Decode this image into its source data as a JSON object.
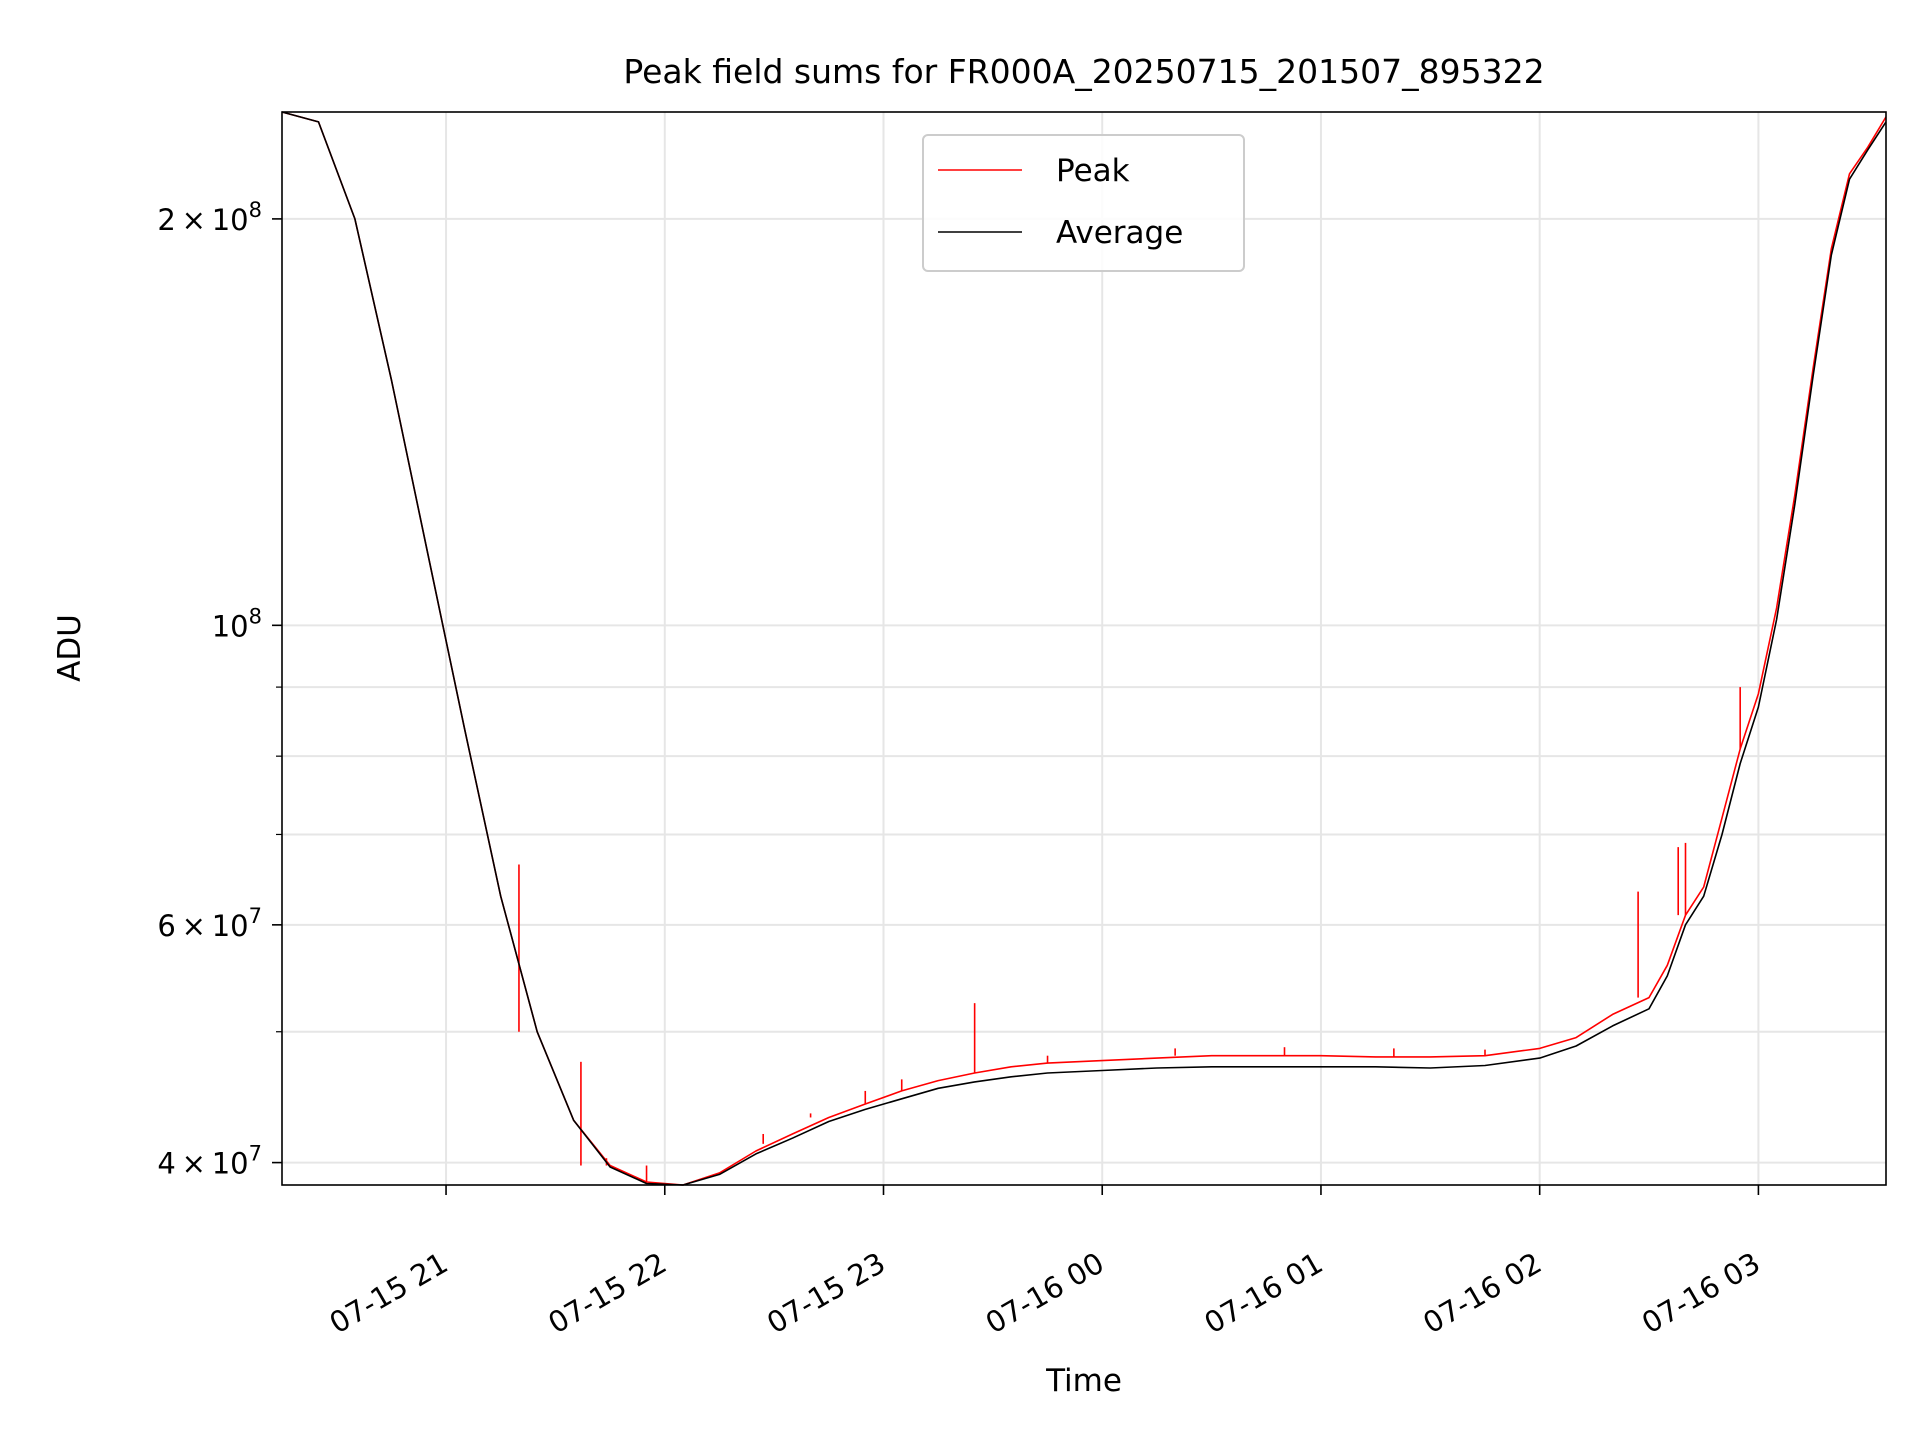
{
  "chart_data": {
    "type": "line",
    "title": "Peak field sums for FR000A_20250715_201507_895322",
    "xlabel": "Time",
    "ylabel": "ADU",
    "y_scale": "log",
    "ylim": [
      38500000,
      240000000
    ],
    "xlim": [
      "2025-07-15 20:15",
      "2025-07-16 03:35"
    ],
    "grid": true,
    "legend_position": "upper center",
    "x_ticks": [
      {
        "t": "2025-07-15 21:00",
        "label": "07-15 21"
      },
      {
        "t": "2025-07-15 22:00",
        "label": "07-15 22"
      },
      {
        "t": "2025-07-15 23:00",
        "label": "07-15 23"
      },
      {
        "t": "2025-07-16 00:00",
        "label": "07-16 00"
      },
      {
        "t": "2025-07-16 01:00",
        "label": "07-16 01"
      },
      {
        "t": "2025-07-16 02:00",
        "label": "07-16 02"
      },
      {
        "t": "2025-07-16 03:00",
        "label": "07-16 03"
      }
    ],
    "y_ticks": [
      {
        "value": 40000000,
        "mantissa": "4",
        "exponent": "7"
      },
      {
        "value": 60000000,
        "mantissa": "6",
        "exponent": "7"
      },
      {
        "value": 100000000,
        "mantissa": "",
        "exponent": "8"
      },
      {
        "value": 200000000,
        "mantissa": "2",
        "exponent": "8"
      }
    ],
    "y_minor_ticks": [
      50000000,
      70000000,
      80000000,
      90000000
    ],
    "series": [
      {
        "name": "Peak",
        "color": "#ff0000",
        "x": [
          "2025-07-15 20:15",
          "2025-07-15 20:25",
          "2025-07-15 20:35",
          "2025-07-15 20:45",
          "2025-07-15 20:55",
          "2025-07-15 21:05",
          "2025-07-15 21:15",
          "2025-07-15 21:25",
          "2025-07-15 21:35",
          "2025-07-15 21:45",
          "2025-07-15 21:55",
          "2025-07-15 22:05",
          "2025-07-15 22:15",
          "2025-07-15 22:25",
          "2025-07-15 22:35",
          "2025-07-15 22:45",
          "2025-07-15 22:55",
          "2025-07-15 23:05",
          "2025-07-15 23:15",
          "2025-07-15 23:25",
          "2025-07-15 23:35",
          "2025-07-15 23:45",
          "2025-07-16 00:00",
          "2025-07-16 00:15",
          "2025-07-16 00:30",
          "2025-07-16 00:45",
          "2025-07-16 01:00",
          "2025-07-16 01:15",
          "2025-07-16 01:30",
          "2025-07-16 01:45",
          "2025-07-16 02:00",
          "2025-07-16 02:10",
          "2025-07-16 02:20",
          "2025-07-16 02:30",
          "2025-07-16 02:35",
          "2025-07-16 02:40",
          "2025-07-16 02:45",
          "2025-07-16 02:50",
          "2025-07-16 02:55",
          "2025-07-16 03:00",
          "2025-07-16 03:05",
          "2025-07-16 03:10",
          "2025-07-16 03:15",
          "2025-07-16 03:20",
          "2025-07-16 03:25",
          "2025-07-16 03:30",
          "2025-07-16 03:35"
        ],
        "y": [
          240000000,
          236000000,
          200000000,
          152000000,
          113000000,
          84000000,
          63000000,
          50000000,
          43000000,
          39800000,
          38700000,
          38500000,
          39300000,
          40800000,
          42000000,
          43200000,
          44200000,
          45200000,
          46000000,
          46600000,
          47100000,
          47400000,
          47600000,
          47800000,
          48000000,
          48000000,
          48000000,
          47900000,
          47900000,
          48000000,
          48600000,
          49500000,
          51500000,
          53000000,
          56000000,
          61000000,
          64000000,
          72000000,
          81000000,
          89000000,
          103000000,
          125000000,
          155000000,
          190000000,
          216000000,
          226000000,
          238000000
        ],
        "spikes": [
          {
            "x": "2025-07-15 21:20",
            "y": 66500000
          },
          {
            "x": "2025-07-15 21:37",
            "y": 47500000
          },
          {
            "x": "2025-07-15 21:44",
            "y": 40300000
          },
          {
            "x": "2025-07-15 21:55",
            "y": 39800000
          },
          {
            "x": "2025-07-15 22:27",
            "y": 41300000
          },
          {
            "x": "2025-07-15 22:40",
            "y": 43500000
          },
          {
            "x": "2025-07-15 22:55",
            "y": 45200000
          },
          {
            "x": "2025-07-15 23:05",
            "y": 46100000
          },
          {
            "x": "2025-07-15 23:25",
            "y": 52500000
          },
          {
            "x": "2025-07-15 23:45",
            "y": 48000000
          },
          {
            "x": "2025-07-16 00:20",
            "y": 48600000
          },
          {
            "x": "2025-07-16 00:50",
            "y": 48700000
          },
          {
            "x": "2025-07-16 01:20",
            "y": 48600000
          },
          {
            "x": "2025-07-16 01:45",
            "y": 48500000
          },
          {
            "x": "2025-07-16 02:27",
            "y": 63500000
          },
          {
            "x": "2025-07-16 02:38",
            "y": 68500000
          },
          {
            "x": "2025-07-16 02:40",
            "y": 69000000
          },
          {
            "x": "2025-07-16 02:55",
            "y": 90000000
          }
        ]
      },
      {
        "name": "Average",
        "color": "#000000",
        "x": [
          "2025-07-15 20:15",
          "2025-07-15 20:25",
          "2025-07-15 20:35",
          "2025-07-15 20:45",
          "2025-07-15 20:55",
          "2025-07-15 21:05",
          "2025-07-15 21:15",
          "2025-07-15 21:25",
          "2025-07-15 21:35",
          "2025-07-15 21:45",
          "2025-07-15 21:55",
          "2025-07-15 22:05",
          "2025-07-15 22:15",
          "2025-07-15 22:25",
          "2025-07-15 22:35",
          "2025-07-15 22:45",
          "2025-07-15 22:55",
          "2025-07-15 23:05",
          "2025-07-15 23:15",
          "2025-07-15 23:25",
          "2025-07-15 23:35",
          "2025-07-15 23:45",
          "2025-07-16 00:00",
          "2025-07-16 00:15",
          "2025-07-16 00:30",
          "2025-07-16 00:45",
          "2025-07-16 01:00",
          "2025-07-16 01:15",
          "2025-07-16 01:30",
          "2025-07-16 01:45",
          "2025-07-16 02:00",
          "2025-07-16 02:10",
          "2025-07-16 02:20",
          "2025-07-16 02:30",
          "2025-07-16 02:35",
          "2025-07-16 02:40",
          "2025-07-16 02:45",
          "2025-07-16 02:50",
          "2025-07-16 02:55",
          "2025-07-16 03:00",
          "2025-07-16 03:05",
          "2025-07-16 03:10",
          "2025-07-16 03:15",
          "2025-07-16 03:20",
          "2025-07-16 03:25",
          "2025-07-16 03:30",
          "2025-07-16 03:35"
        ],
        "y": [
          240000000,
          236000000,
          200000000,
          152000000,
          113000000,
          84000000,
          63000000,
          50000000,
          43000000,
          39700000,
          38600000,
          38500000,
          39200000,
          40600000,
          41700000,
          42900000,
          43800000,
          44600000,
          45400000,
          45900000,
          46300000,
          46600000,
          46800000,
          47000000,
          47100000,
          47100000,
          47100000,
          47100000,
          47000000,
          47200000,
          47800000,
          48800000,
          50500000,
          52000000,
          55000000,
          60000000,
          63000000,
          70000000,
          79000000,
          87000000,
          101000000,
          123000000,
          153000000,
          188000000,
          214000000,
          225000000,
          236000000
        ]
      }
    ]
  }
}
